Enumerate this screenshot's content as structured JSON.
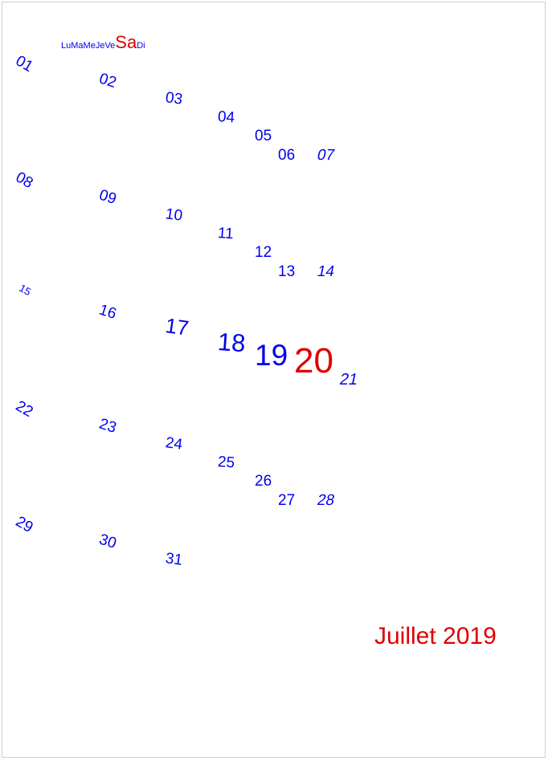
{
  "weekday_headers": [
    "Lu",
    "Ma",
    "Me",
    "Je",
    "Ve",
    "Sa",
    "Di"
  ],
  "highlight_weekday": "Sa",
  "month_title": "Juillet 2019",
  "highlight_day": "20",
  "colors": {
    "normal": "#0000ee",
    "highlight": "#dd0000"
  },
  "weeks": [
    [
      "01",
      "02",
      "03",
      "04",
      "05",
      "06",
      "07"
    ],
    [
      "08",
      "09",
      "10",
      "11",
      "12",
      "13",
      "14"
    ],
    [
      "15",
      "16",
      "17",
      "18",
      "19",
      "20",
      "21"
    ],
    [
      "22",
      "23",
      "24",
      "25",
      "26",
      "27",
      "28"
    ],
    [
      "29",
      "30",
      "31"
    ]
  ]
}
